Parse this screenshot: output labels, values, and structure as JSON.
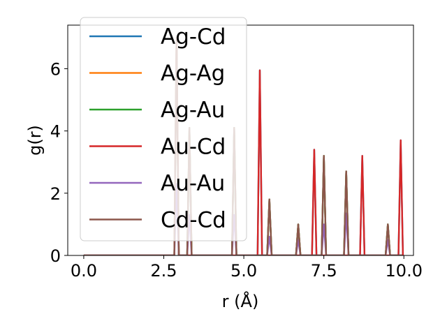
{
  "chart_data": {
    "type": "line",
    "title": "",
    "xlabel": "r (Å)",
    "ylabel": "g(r)",
    "xlim": [
      -0.5,
      10.3
    ],
    "ylim": [
      0,
      7.4
    ],
    "xticks": [
      0.0,
      2.5,
      5.0,
      7.5,
      10.0
    ],
    "xtick_labels": [
      "0.0",
      "2.5",
      "5.0",
      "7.5",
      "10.0"
    ],
    "yticks": [
      0,
      2,
      4,
      6
    ],
    "ytick_labels": [
      "0",
      "2",
      "4",
      "6"
    ],
    "grid": false,
    "legend_position": "top-left",
    "series": [
      {
        "name": "Ag-Cd",
        "color": "#1f77b4",
        "peaks": [
          [
            2.9,
            7.0
          ],
          [
            3.3,
            4.1
          ],
          [
            4.7,
            4.1
          ],
          [
            5.5,
            5.95
          ],
          [
            5.8,
            1.8
          ],
          [
            6.7,
            1.0
          ],
          [
            7.2,
            3.4
          ],
          [
            7.5,
            3.2
          ],
          [
            8.2,
            2.7
          ],
          [
            8.7,
            3.2
          ],
          [
            9.5,
            1.0
          ],
          [
            9.9,
            3.7
          ]
        ]
      },
      {
        "name": "Ag-Ag",
        "color": "#ff7f0e",
        "peaks": [
          [
            2.9,
            7.0
          ],
          [
            3.3,
            4.1
          ],
          [
            4.7,
            4.1
          ],
          [
            5.8,
            1.8
          ],
          [
            6.7,
            1.0
          ],
          [
            7.5,
            3.2
          ],
          [
            8.2,
            2.7
          ],
          [
            9.5,
            1.0
          ]
        ]
      },
      {
        "name": "Ag-Au",
        "color": "#2ca02c",
        "peaks": [
          [
            2.9,
            7.0
          ],
          [
            3.3,
            4.1
          ],
          [
            4.7,
            4.1
          ],
          [
            5.8,
            1.8
          ],
          [
            6.7,
            1.0
          ],
          [
            7.5,
            3.2
          ],
          [
            8.2,
            2.7
          ],
          [
            9.5,
            1.0
          ]
        ]
      },
      {
        "name": "Au-Cd",
        "color": "#d62728",
        "peaks": [
          [
            2.9,
            7.0
          ],
          [
            5.5,
            5.95
          ],
          [
            7.2,
            3.4
          ],
          [
            8.7,
            3.2
          ],
          [
            9.9,
            3.7
          ]
        ]
      },
      {
        "name": "Au-Au",
        "color": "#9467bd",
        "peaks": [
          [
            2.9,
            2.3
          ],
          [
            3.3,
            1.3
          ],
          [
            4.7,
            1.3
          ],
          [
            5.8,
            0.6
          ],
          [
            6.7,
            0.5
          ],
          [
            7.5,
            1.0
          ],
          [
            8.2,
            1.35
          ],
          [
            9.5,
            0.5
          ]
        ]
      },
      {
        "name": "Cd-Cd",
        "color": "#8c564b",
        "peaks": [
          [
            2.9,
            7.0
          ],
          [
            3.3,
            4.1
          ],
          [
            4.7,
            4.1
          ],
          [
            5.8,
            1.8
          ],
          [
            6.7,
            1.0
          ],
          [
            7.5,
            3.2
          ],
          [
            8.2,
            2.7
          ],
          [
            9.5,
            1.0
          ]
        ]
      }
    ]
  }
}
